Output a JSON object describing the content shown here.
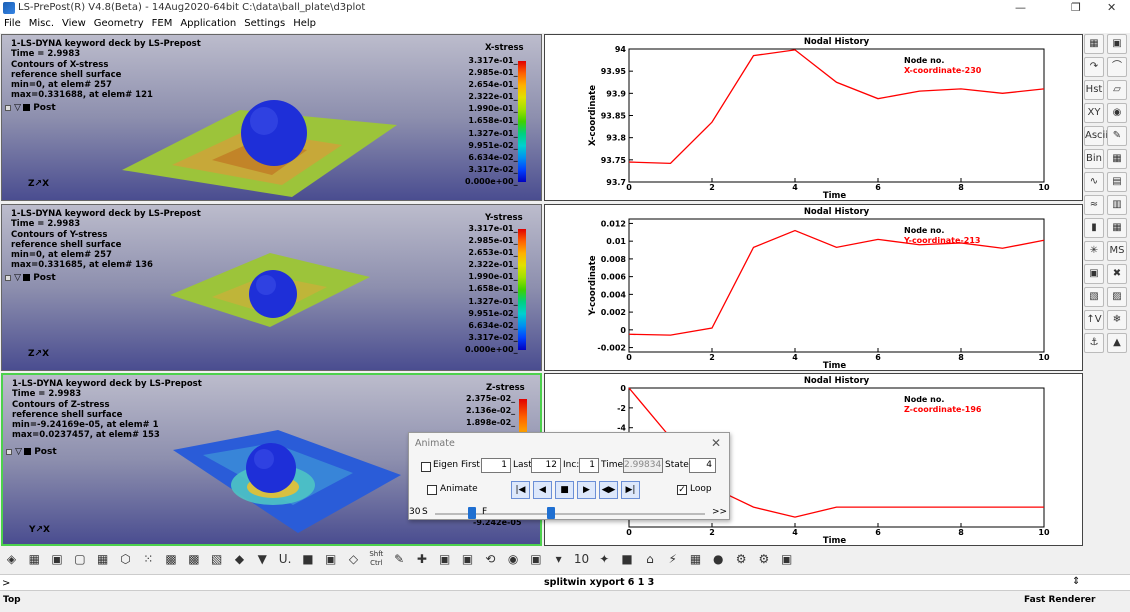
{
  "window": {
    "title": "LS-PrePost(R) V4.8(Beta) - 14Aug2020-64bit C:\\data\\ball_plate\\d3plot",
    "min": "—",
    "max": "❐",
    "close": "✕"
  },
  "menu": [
    "File",
    "Misc.",
    "View",
    "Geometry",
    "FEM",
    "Application",
    "Settings",
    "Help"
  ],
  "viewports": [
    {
      "lines": [
        "1-LS-DYNA keyword deck by LS-Prepost",
        "Time =     2.9983",
        "Contours of X-stress",
        "reference shell surface",
        "min=0, at elem# 257",
        "max=0.331688, at elem# 121"
      ],
      "post": "Post",
      "legend_title": "X-stress",
      "legend": [
        "3.317e-01_",
        "2.985e-01_",
        "2.654e-01_",
        "2.322e-01_",
        "1.990e-01_",
        "1.658e-01_",
        "1.327e-01_",
        "9.951e-02_",
        "6.634e-02_",
        "3.317e-02_",
        "0.000e+00_"
      ],
      "axes": "Z↗X"
    },
    {
      "lines": [
        "1-LS-DYNA keyword deck by LS-Prepost",
        "Time =     2.9983",
        "Contours of Y-stress",
        "reference shell surface",
        "min=0, at elem# 257",
        "max=0.331685, at elem# 136"
      ],
      "post": "Post",
      "legend_title": "Y-stress",
      "legend": [
        "3.317e-01_",
        "2.985e-01_",
        "2.653e-01_",
        "2.322e-01_",
        "1.990e-01_",
        "1.658e-01_",
        "1.327e-01_",
        "9.951e-02_",
        "6.634e-02_",
        "3.317e-02_",
        "0.000e+00_"
      ],
      "axes": "Z↗X"
    },
    {
      "lines": [
        "1-LS-DYNA keyword deck by LS-Prepost",
        "Time =     2.9983",
        "Contours of Z-stress",
        "reference shell surface",
        "min=-9.24169e-05, at elem# 1",
        "max=0.0237457, at elem# 153"
      ],
      "post": "Post",
      "legend_title": "Z-stress",
      "legend": [
        "2.375e-02_",
        "2.136e-02_",
        "1.898e-02_"
      ],
      "legend_bottom": "-9.242e-05",
      "axes": "Y↗X"
    }
  ],
  "chart_data": [
    {
      "type": "line",
      "title": "Nodal History",
      "xlabel": "Time",
      "ylabel": "X-coordinate",
      "xlim": [
        0,
        10
      ],
      "ylim": [
        93.7,
        94
      ],
      "xticks": [
        "0",
        "2",
        "4",
        "6",
        "8",
        "10"
      ],
      "yticks": [
        "94",
        "93.95",
        "93.9",
        "93.85",
        "93.8",
        "93.75",
        "93.7"
      ],
      "legend_header": "Node no.",
      "series": [
        {
          "name": "X-coordinate-230",
          "color": "#ff0000",
          "x": [
            0,
            1,
            2,
            3,
            4,
            5,
            6,
            7,
            8,
            9,
            10
          ],
          "y": [
            93.745,
            93.742,
            93.835,
            93.985,
            93.998,
            93.925,
            93.888,
            93.905,
            93.91,
            93.9,
            93.91
          ]
        }
      ]
    },
    {
      "type": "line",
      "title": "Nodal History",
      "xlabel": "Time",
      "ylabel": "Y-coordinate",
      "xlim": [
        0,
        10
      ],
      "ylim": [
        -0.0025,
        0.0125
      ],
      "xticks": [
        "0",
        "2",
        "4",
        "6",
        "8",
        "10"
      ],
      "yticks": [
        "0.012",
        "0.01",
        "0.008",
        "0.006",
        "0.004",
        "0.002",
        "0",
        "-0.002"
      ],
      "legend_header": "Node no.",
      "series": [
        {
          "name": "Y-coordinate-213",
          "color": "#ff0000",
          "x": [
            0,
            1,
            2,
            3,
            4,
            5,
            6,
            7,
            8,
            9,
            10
          ],
          "y": [
            -0.0005,
            -0.0006,
            0.0002,
            0.0093,
            0.0112,
            0.0093,
            0.0102,
            0.0096,
            0.0098,
            0.0092,
            0.0101
          ]
        }
      ]
    },
    {
      "type": "line",
      "title": "Nodal History",
      "xlabel": "Time",
      "ylabel": "",
      "xlim": [
        0,
        10
      ],
      "ylim": [
        -14,
        0
      ],
      "xticks": [
        "0",
        "2",
        "4",
        "6",
        "8",
        "10"
      ],
      "yticks": [
        "0",
        "-2",
        "-4"
      ],
      "legend_header": "Node no.",
      "series": [
        {
          "name": "Z-coordinate-196",
          "color": "#ff0000",
          "x": [
            0,
            1,
            2,
            3,
            4,
            5,
            6,
            7,
            8,
            9,
            10
          ],
          "y": [
            0,
            -5,
            -10,
            -12,
            -13,
            -12,
            -12,
            -12,
            -12,
            -12,
            -12
          ]
        }
      ]
    }
  ],
  "toolbox": [
    "▦",
    "▣",
    "↷",
    "⌒",
    "Hst",
    "▱",
    "XY",
    "◉",
    "Ascii",
    "✎",
    "Bin",
    "▦",
    "∿",
    "▤",
    "≈",
    "▥",
    "▮",
    "▦",
    "✳",
    "MS",
    "▣",
    "✖",
    "▧",
    "▨",
    "↑V",
    "❄",
    "⚓",
    "▲"
  ],
  "bottom_toolbar": [
    "◈",
    "▦",
    "▣",
    "▢",
    "▦",
    "⬡",
    "⁙",
    "▩",
    "▩",
    "▧",
    "◆",
    "▼",
    "U.",
    "■",
    "▣",
    "◇",
    "Shft Ctrl",
    "✎",
    "✚",
    "▣",
    "▣",
    "⟲",
    "◉",
    "▣",
    "▾",
    "10",
    "✦",
    "■",
    "⌂",
    "⚡",
    "▦",
    "●",
    "⚙",
    "⚙",
    "▣"
  ],
  "command": {
    "input": ">",
    "echo": "splitwin xyport 6 1 3"
  },
  "status": {
    "left": "Top",
    "right": "Fast Renderer"
  },
  "animate": {
    "title": "Animate",
    "eigen": "Eigen",
    "first_label": "First:",
    "first": "1",
    "last_label": "Last:",
    "last": "12",
    "inc_label": "Inc:",
    "inc": "1",
    "time_label": "Time:",
    "time": "2.99834",
    "state_label": "State:",
    "state": "4",
    "animate": "Animate",
    "loop": "Loop",
    "speed": "30",
    "s": "S",
    "f": "F",
    "more": ">>",
    "buttons": [
      "|◀",
      "◀",
      "■",
      "▶",
      "◀▶",
      "▶|"
    ]
  }
}
